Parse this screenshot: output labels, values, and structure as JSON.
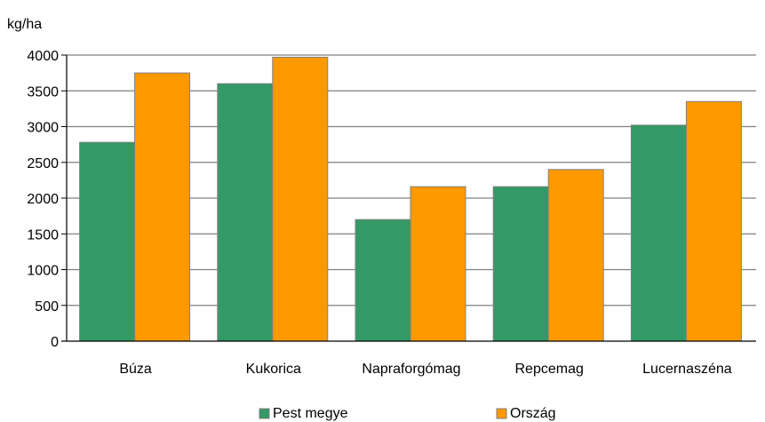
{
  "chart_data": {
    "type": "bar",
    "ylabel": "kg/ha",
    "ylim": [
      0,
      4000
    ],
    "yticks": [
      0,
      500,
      1000,
      1500,
      2000,
      2500,
      3000,
      3500,
      4000
    ],
    "grid": true,
    "legend_position": "bottom",
    "categories": [
      "Búza",
      "Kukorica",
      "Napraforgómag",
      "Repcemag",
      "Lucernaszéna"
    ],
    "series": [
      {
        "name": "Pest megye",
        "color": "#339966",
        "values": [
          2780,
          3600,
          1700,
          2160,
          3020
        ]
      },
      {
        "name": "Ország",
        "color": "#ff9900",
        "values": [
          3750,
          3970,
          2160,
          2400,
          3350
        ]
      }
    ]
  }
}
